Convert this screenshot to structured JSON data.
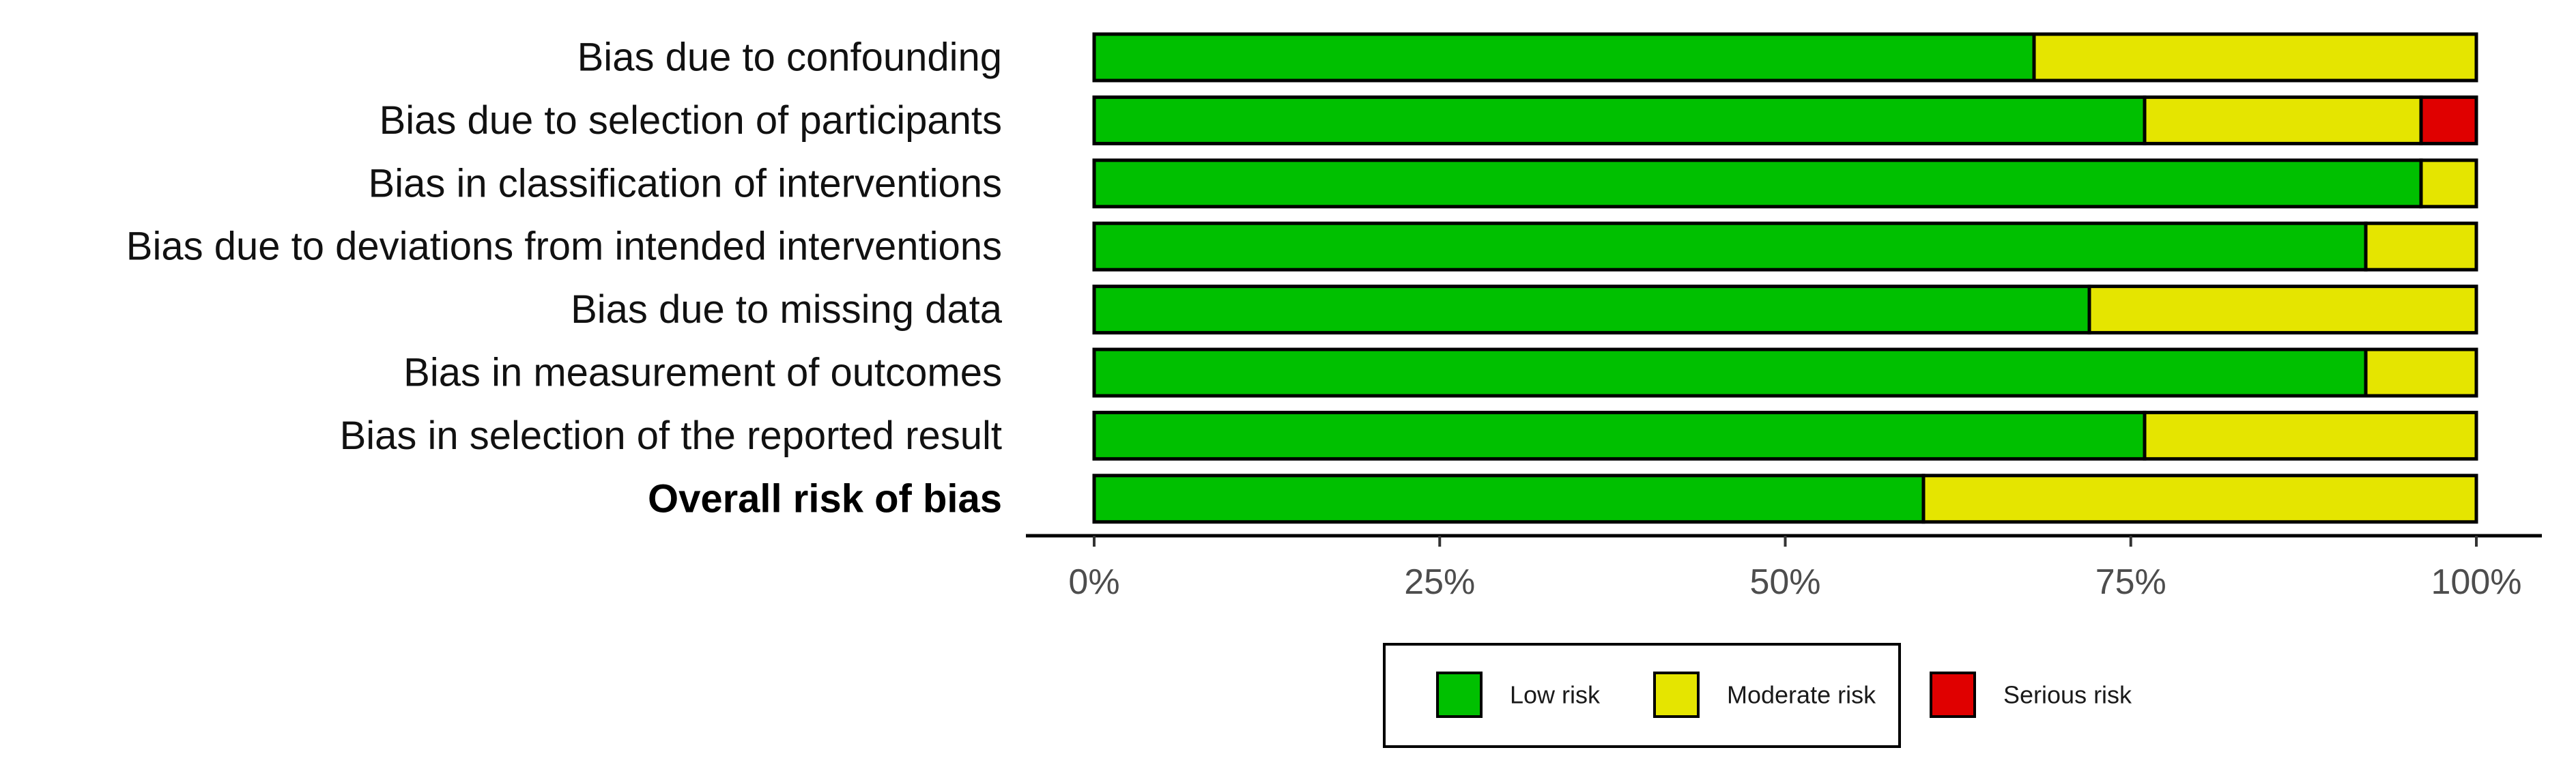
{
  "chart_data": {
    "type": "bar",
    "orientation": "horizontal",
    "stacked": true,
    "categories": [
      "Bias due to confounding",
      "Bias due to selection of participants",
      "Bias in classification of interventions",
      "Bias due to deviations from intended interventions",
      "Bias due to missing data",
      "Bias in measurement of outcomes",
      "Bias in selection of the reported result",
      "Overall risk of bias"
    ],
    "bold_category": "Overall risk of bias",
    "series": [
      {
        "name": "Low risk",
        "color": "#00c000",
        "values": [
          68,
          76,
          96,
          92,
          72,
          92,
          76,
          60
        ]
      },
      {
        "name": "Moderate risk",
        "color": "#e5e500",
        "values": [
          32,
          20,
          4,
          8,
          28,
          8,
          24,
          40
        ]
      },
      {
        "name": "Serious risk",
        "color": "#e00000",
        "values": [
          0,
          4,
          0,
          0,
          0,
          0,
          0,
          0
        ]
      }
    ],
    "x_ticks": [
      "0%",
      "25%",
      "50%",
      "75%",
      "100%"
    ],
    "xlim": [
      0,
      100
    ],
    "grid": false,
    "legend_position": "bottom"
  }
}
